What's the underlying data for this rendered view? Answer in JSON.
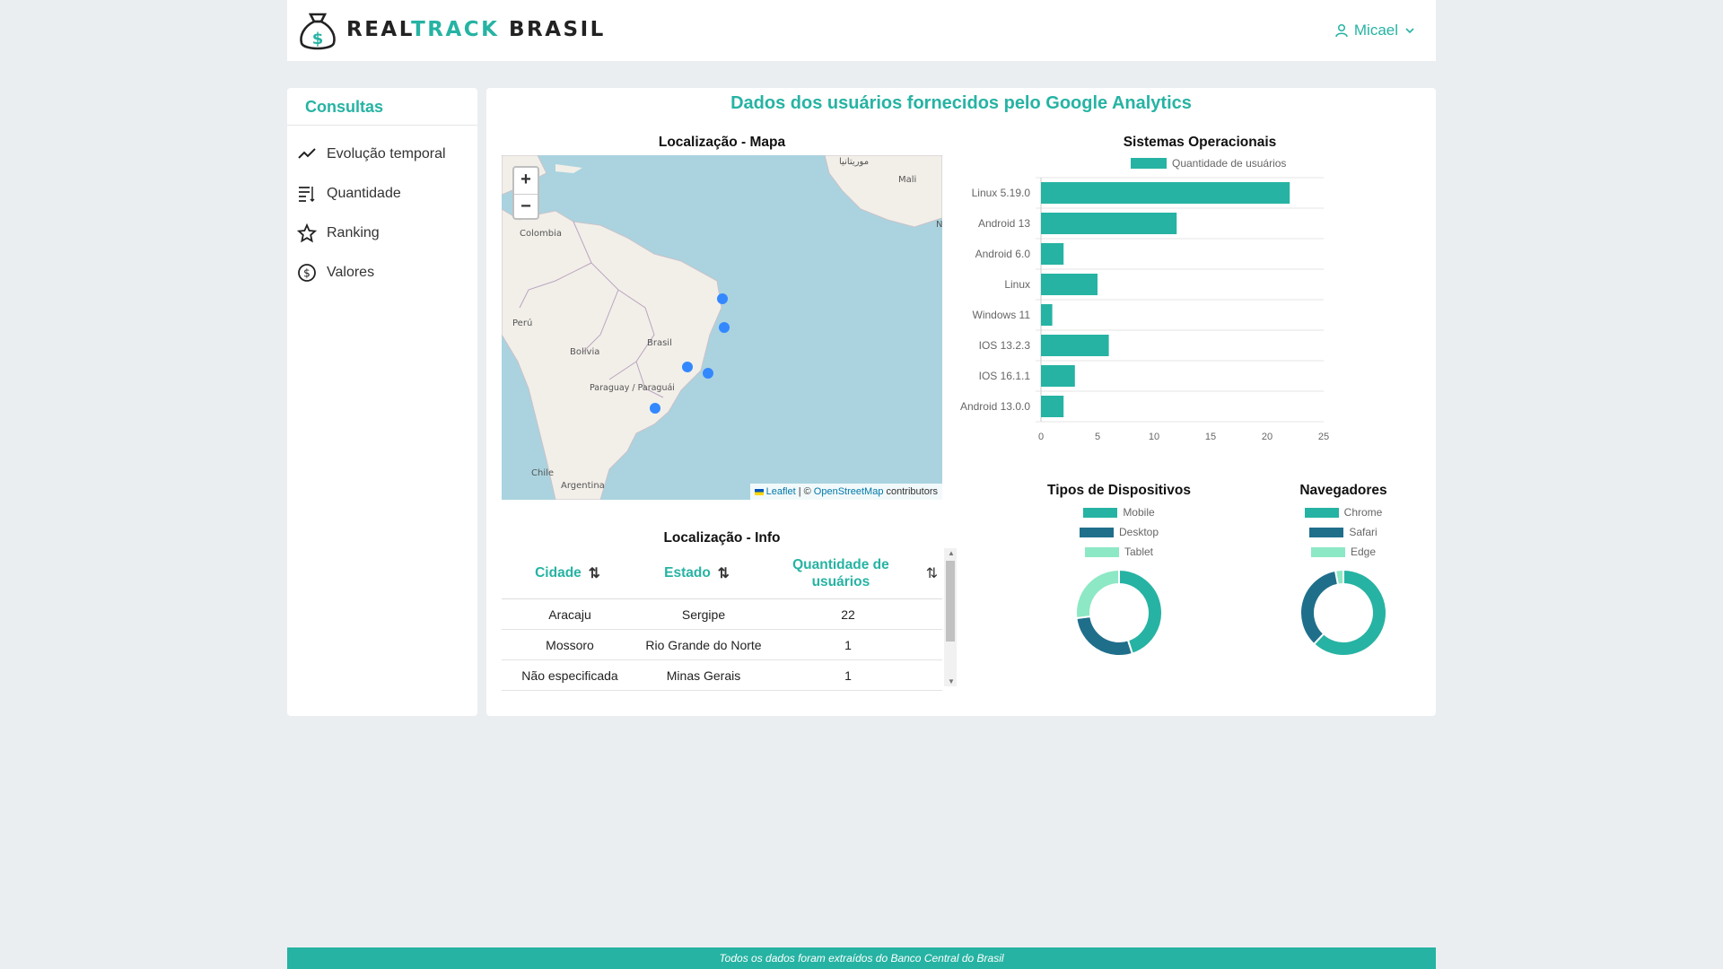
{
  "header": {
    "brand_dark": "REAL",
    "brand_accent": "TRACK",
    "brand_rest": " BRASIL",
    "user_name": "Micael"
  },
  "sidebar": {
    "title": "Consultas",
    "items": [
      {
        "label": "Evolução temporal",
        "icon": "trend-line-icon"
      },
      {
        "label": "Quantidade",
        "icon": "list-numbers-icon"
      },
      {
        "label": "Ranking",
        "icon": "star-icon"
      },
      {
        "label": "Valores",
        "icon": "dollar-circle-icon"
      }
    ]
  },
  "main": {
    "title": "Dados dos usuários fornecidos pelo Google Analytics",
    "map_title": "Localização - Mapa",
    "map": {
      "zoom_in": "+",
      "zoom_out": "−",
      "attribution_leaflet": "Leaflet",
      "attribution_sep": "|",
      "attribution_copy": "©",
      "attribution_osm": "OpenStreetMap",
      "attribution_contrib": "contributors",
      "labels": [
        "Colombia",
        "Perú",
        "Brasil",
        "Bolivia",
        "Paraguay / Paraguái",
        "Chile",
        "Argentina",
        "Mali",
        "موريتانيا",
        "N"
      ]
    },
    "table_title": "Localização - Info",
    "table": {
      "headers": [
        "Cidade",
        "Estado",
        "Quantidade de usuários"
      ],
      "rows": [
        [
          "Aracaju",
          "Sergipe",
          "22"
        ],
        [
          "Mossoro",
          "Rio Grande do Norte",
          "1"
        ],
        [
          "Não especificada",
          "Minas Gerais",
          "1"
        ]
      ]
    }
  },
  "colors": {
    "accent": "#26b3a3",
    "dark_teal": "#1f6f8b",
    "light_mint": "#8de8c5",
    "bar": "#26b3a3"
  },
  "footer": {
    "text": "Todos os dados foram extraídos do Banco Central do Brasil"
  },
  "chart_data": [
    {
      "type": "bar",
      "orientation": "horizontal",
      "title": "Sistemas Operacionais",
      "legend": "Quantidade de usuários",
      "categories": [
        "Linux 5.19.0",
        "Android 13",
        "Android 6.0",
        "Linux",
        "Windows 11",
        "IOS 13.2.3",
        "IOS 16.1.1",
        "Android 13.0.0"
      ],
      "values": [
        22,
        12,
        2,
        5,
        1,
        6,
        3,
        2
      ],
      "xlim": [
        0,
        25
      ],
      "xticks": [
        "0",
        "5",
        "10",
        "15",
        "20",
        "25"
      ]
    },
    {
      "type": "pie",
      "donut": true,
      "title": "Tipos de Dispositivos",
      "labels": [
        "Mobile",
        "Desktop",
        "Tablet"
      ],
      "values": [
        45,
        28,
        27
      ]
    },
    {
      "type": "pie",
      "donut": true,
      "title": "Navegadores",
      "labels": [
        "Chrome",
        "Safari",
        "Edge"
      ],
      "values": [
        62,
        35,
        3
      ]
    }
  ]
}
